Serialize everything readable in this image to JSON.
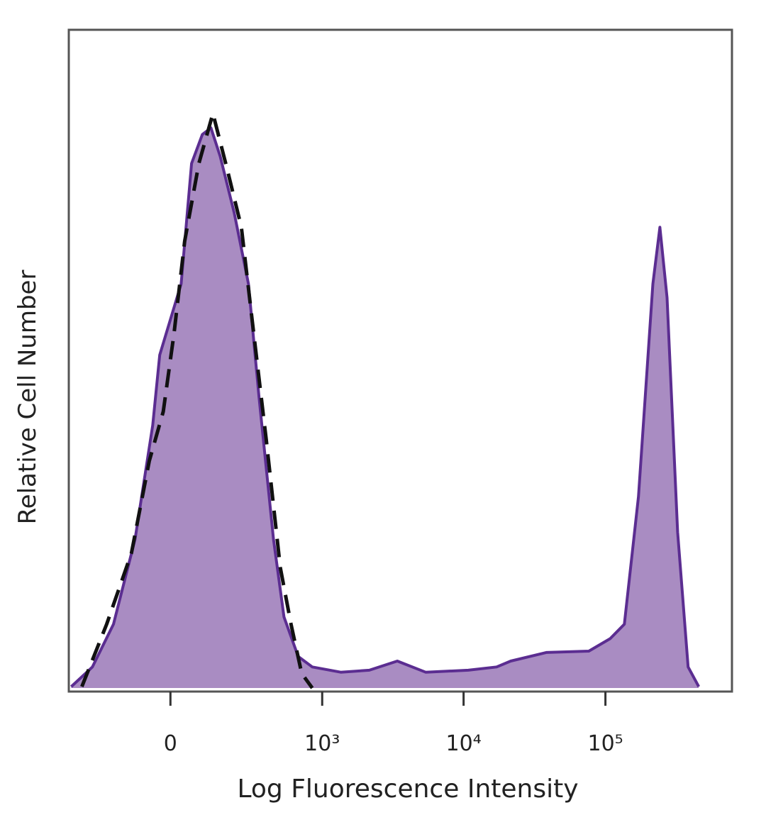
{
  "chart_data": {
    "type": "histogram-overlay",
    "x_label": "Log Fluorescence Intensity",
    "y_label": "Relative Cell Number",
    "xscale": "biexponential",
    "xlim": [
      -430,
      780000
    ],
    "ylim": [
      0,
      100
    ],
    "xticks": [
      0,
      {
        "value": 1000,
        "label": "10³"
      },
      {
        "value": 10000,
        "label": "10⁴"
      },
      {
        "value": 100000,
        "label": "10⁵"
      }
    ],
    "series": [
      {
        "color": "#5b2d91",
        "fill": "#a98cc2",
        "style": "solid",
        "x": [
          -412,
          -280,
          -182,
          -104,
          -50,
          -30,
          0,
          30,
          60,
          93,
          121,
          154,
          211,
          280,
          341,
          441,
          528,
          671,
          849,
          1355,
          2160,
          3410,
          5400,
          10790,
          17100,
          21500,
          38300,
          76400,
          108000,
          136000,
          171000,
          216000,
          242000,
          272000,
          323000,
          383000,
          455000
        ],
        "values": [
          0.2,
          3.2,
          9.7,
          22.6,
          39.9,
          50.6,
          56.0,
          61.4,
          79.7,
          84.1,
          85.1,
          80.8,
          72.2,
          61.4,
          44.2,
          22.6,
          10.8,
          4.8,
          3.2,
          2.4,
          2.7,
          4.1,
          2.4,
          2.7,
          3.2,
          4.1,
          5.4,
          5.6,
          7.5,
          9.7,
          29.1,
          61.4,
          70.0,
          59.3,
          23.7,
          3.2,
          0.2
        ]
      },
      {
        "color": "#111111",
        "fill": "none",
        "style": "dashed",
        "x": [
          -341,
          -211,
          -116,
          -60,
          -20,
          10,
          40,
          82,
          128,
          182,
          244,
          300,
          388,
          496,
          595,
          712,
          849
        ],
        "values": [
          0.2,
          9.7,
          20.5,
          34.5,
          42.0,
          53.9,
          67.9,
          79.7,
          87.3,
          78.7,
          70.0,
          56.0,
          37.7,
          18.3,
          9.7,
          2.2,
          0
        ]
      }
    ]
  }
}
